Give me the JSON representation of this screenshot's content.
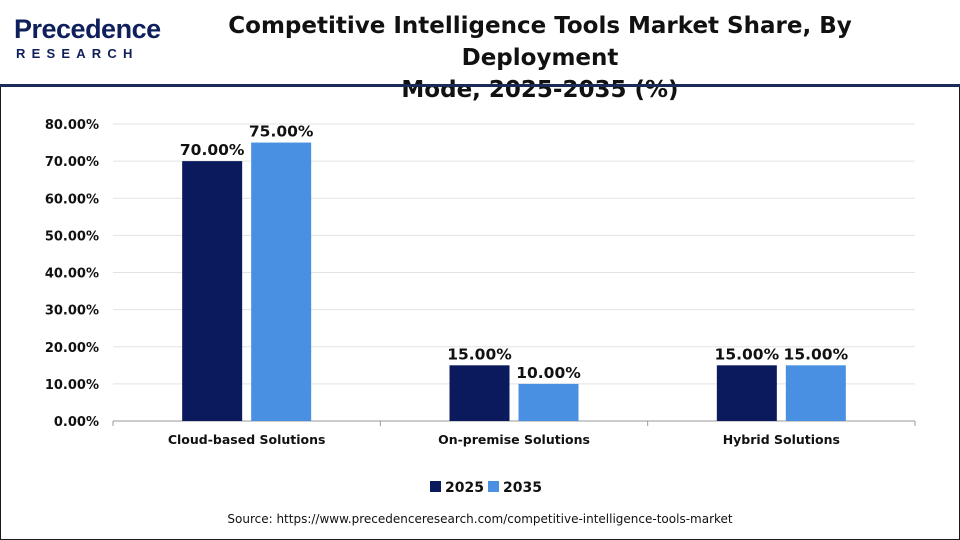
{
  "header": {
    "logo_main": "Precedence",
    "logo_sub": "RESEARCH",
    "title_line1": "Competitive Intelligence Tools Market Share, By Deployment",
    "title_line2": "Mode, 2025-2035 (%)"
  },
  "colors": {
    "series_2025": "#0b1a5c",
    "series_2035": "#4a90e2",
    "logo": "#0f1f5c"
  },
  "chart_data": {
    "type": "bar",
    "title": "Competitive Intelligence Tools Market Share, By Deployment Mode, 2025-2035 (%)",
    "categories": [
      "Cloud-based Solutions",
      "On-premise Solutions",
      "Hybrid Solutions"
    ],
    "series": [
      {
        "name": "2025",
        "values": [
          70,
          15,
          15
        ],
        "labels": [
          "70.00%",
          "15.00%",
          "15.00%"
        ]
      },
      {
        "name": "2035",
        "values": [
          75,
          10,
          15
        ],
        "labels": [
          "75.00%",
          "10.00%",
          "15.00%"
        ]
      }
    ],
    "ylim": [
      0,
      80
    ],
    "yticks": [
      0,
      10,
      20,
      30,
      40,
      50,
      60,
      70,
      80
    ],
    "ytick_labels": [
      "0.00%",
      "10.00%",
      "20.00%",
      "30.00%",
      "40.00%",
      "50.00%",
      "60.00%",
      "70.00%",
      "80.00%"
    ],
    "xlabel": "",
    "ylabel": "",
    "grid": true,
    "legend_position": "bottom"
  },
  "footer": {
    "source": "Source: https://www.precedenceresearch.com/competitive-intelligence-tools-market"
  }
}
